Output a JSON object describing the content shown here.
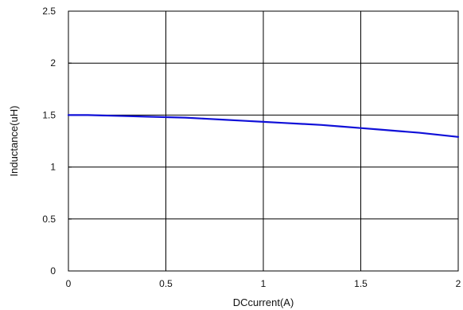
{
  "chart_data": {
    "type": "line",
    "title": "",
    "xlabel": "DCcurrent(A)",
    "ylabel": "Inductance(uH)",
    "xlim": [
      0,
      2
    ],
    "ylim": [
      0,
      2.5
    ],
    "xticks": [
      "0",
      "0.5",
      "1",
      "1.5",
      "2"
    ],
    "yticks": [
      "0",
      "0.5",
      "1",
      "1.5",
      "2",
      "2.5"
    ],
    "grid": true,
    "legend": "none",
    "series": [
      {
        "color": "#1010d8",
        "x": [
          0,
          0.1,
          0.2,
          0.3,
          0.4,
          0.5,
          0.6,
          0.7,
          0.8,
          0.9,
          1.0,
          1.1,
          1.2,
          1.3,
          1.4,
          1.5,
          1.6,
          1.7,
          1.8,
          1.9,
          2.0
        ],
        "y": [
          1.5,
          1.5,
          1.495,
          1.49,
          1.485,
          1.48,
          1.475,
          1.465,
          1.455,
          1.445,
          1.435,
          1.425,
          1.415,
          1.405,
          1.39,
          1.375,
          1.36,
          1.345,
          1.33,
          1.31,
          1.29
        ]
      }
    ]
  }
}
